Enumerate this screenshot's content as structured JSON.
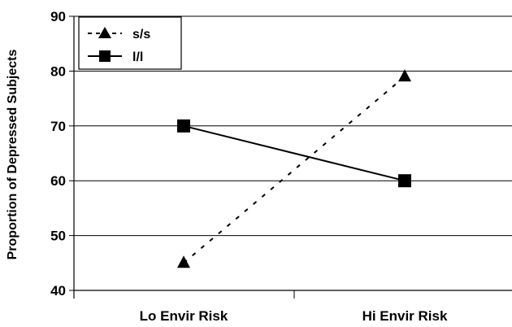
{
  "chart_data": {
    "type": "line",
    "title": "",
    "xlabel": "",
    "ylabel": "Proportion of Depressed Subjects",
    "categories": [
      "Lo Envir Risk",
      "Hi Envir Risk"
    ],
    "ylim": [
      40,
      90
    ],
    "yticks": [
      "40",
      "50",
      "60",
      "70",
      "80",
      "90"
    ],
    "grid": true,
    "legend_position": "top-left",
    "series": [
      {
        "name": "s/s",
        "values": [
          45,
          79
        ],
        "style": "dotted",
        "marker": "triangle",
        "color": "#000000"
      },
      {
        "name": "l/l",
        "values": [
          70,
          60
        ],
        "style": "solid",
        "marker": "square",
        "color": "#000000"
      }
    ]
  }
}
